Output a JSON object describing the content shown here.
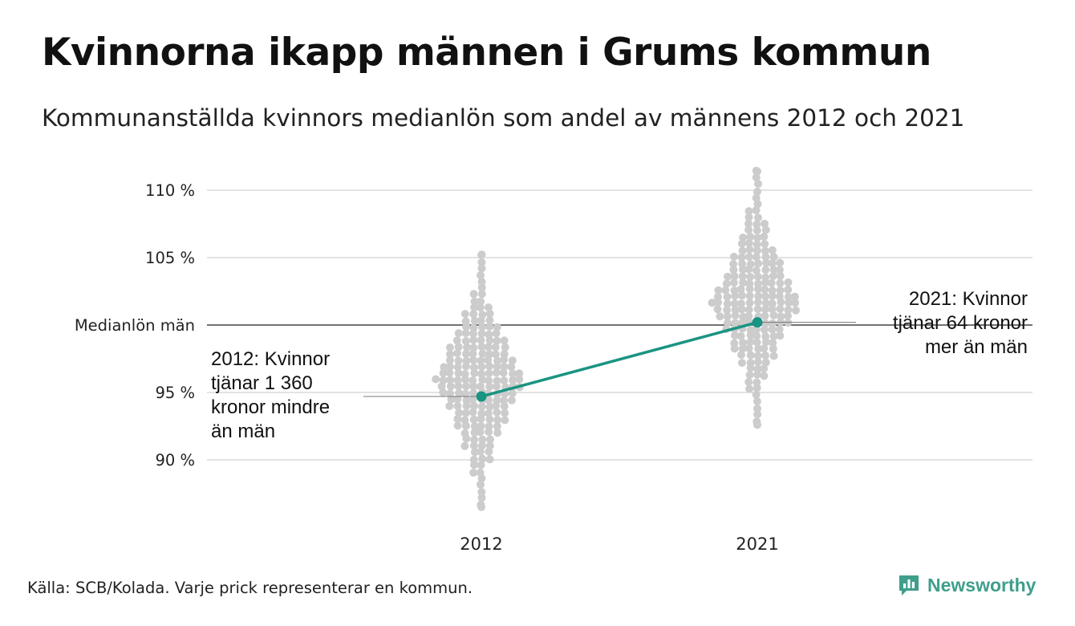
{
  "title": "Kvinnorna ikapp männen i Grums kommun",
  "subtitle": "Kommunanställda kvinnors medianlön som andel av männens 2012 och 2021",
  "source": "Källa: SCB/Kolada. Varje prick representerar en kommun.",
  "brand": {
    "name": "Newsworthy",
    "logo_icon": "bar-chart-speech-icon"
  },
  "colors": {
    "dots": "#cccccc",
    "highlight": "#1a9482",
    "reference_line": "#444444",
    "grid": "#e3e3e3",
    "brand": "#3f9e8c"
  },
  "chart_data": {
    "type": "scatter",
    "title": "Kvinnorna ikapp männen i Grums kommun",
    "subtitle": "Kommunanställda kvinnors medianlön som andel av männens 2012 och 2021",
    "categories": [
      "2012",
      "2021"
    ],
    "ylim": [
      86,
      112
    ],
    "y_ticks": [
      90,
      95,
      100,
      105,
      110
    ],
    "y_tick_labels": [
      "90 %",
      "95 %",
      "Medianlön män",
      "105 %",
      "110 %"
    ],
    "reference_line": {
      "y": 100,
      "label": "Medianlön män"
    },
    "grid": true,
    "distribution": [
      {
        "category": "2012",
        "min": 86.5,
        "max": 105.2,
        "center": 96.0
      },
      {
        "category": "2021",
        "min": 92.6,
        "max": 111.4,
        "center": 101.5
      }
    ],
    "series": [
      {
        "name": "Grums kommun",
        "x": [
          "2012",
          "2021"
        ],
        "y": [
          94.7,
          100.2
        ]
      }
    ],
    "annotations": [
      {
        "category": "2012",
        "y": 94.7,
        "lines": [
          "2012: Kvinnor",
          "tjänar 1 360",
          "kronor mindre",
          "än män"
        ]
      },
      {
        "category": "2021",
        "y": 100.2,
        "lines": [
          "2021: Kvinnor",
          "tjänar 64 kronor",
          "mer än män"
        ]
      }
    ]
  }
}
